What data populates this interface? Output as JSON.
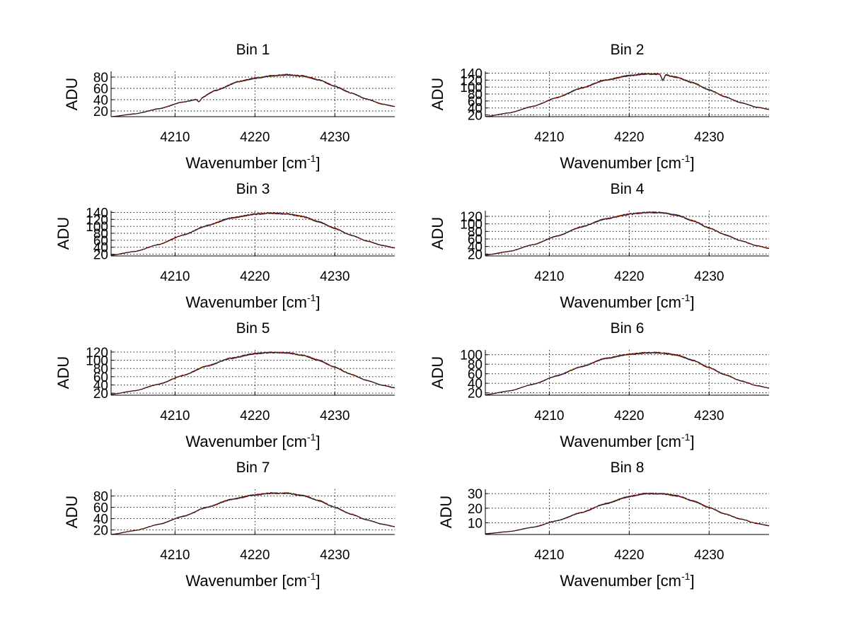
{
  "figure": {
    "background": "#ffffff",
    "series_colors": [
      "#ffd000",
      "#2a8a2a",
      "#1f3fd0",
      "#d00000",
      "#202020"
    ]
  },
  "chart_data": [
    {
      "type": "line",
      "title": "Bin 1",
      "xlabel": "Wavenumber [cm",
      "xlabel_sup": "-1",
      "xlabel_close": "]",
      "ylabel": "ADU",
      "xlim": [
        4202,
        4237.5
      ],
      "ylim": [
        10,
        90
      ],
      "xticks": [
        4210,
        4220,
        4230
      ],
      "xtick_labels": [
        "4210",
        "4220",
        "4230"
      ],
      "yticks": [
        20,
        40,
        60,
        80
      ],
      "ytick_labels": [
        "20",
        "40",
        "60",
        "80"
      ],
      "grid": true,
      "series": [
        {
          "x": [
            4202,
            4205,
            4208,
            4211,
            4213,
            4215,
            4218,
            4220,
            4222,
            4224,
            4226,
            4228,
            4230,
            4232,
            4234,
            4236,
            4237.5
          ],
          "y": [
            10,
            15,
            24,
            36,
            41,
            56,
            72,
            78,
            82,
            84,
            82,
            75,
            64,
            52,
            41,
            32,
            28
          ]
        }
      ],
      "dips": [
        {
          "x": 4213,
          "y": 36
        }
      ]
    },
    {
      "type": "line",
      "title": "Bin 2",
      "xlabel": "Wavenumber [cm",
      "xlabel_sup": "-1",
      "xlabel_close": "]",
      "ylabel": "ADU",
      "xlim": [
        4202,
        4237.5
      ],
      "ylim": [
        15,
        145
      ],
      "xticks": [
        4210,
        4220,
        4230
      ],
      "xtick_labels": [
        "4210",
        "4220",
        "4230"
      ],
      "yticks": [
        20,
        40,
        60,
        80,
        100,
        120,
        140
      ],
      "ytick_labels": [
        "20",
        "40",
        "60",
        "80",
        "100",
        "120",
        "140"
      ],
      "grid": true,
      "series": [
        {
          "x": [
            4202,
            4205,
            4208,
            4211,
            4214,
            4217,
            4220,
            4222,
            4224,
            4226,
            4228,
            4230,
            4232,
            4234,
            4236,
            4237.5
          ],
          "y": [
            15,
            26,
            45,
            70,
            97,
            120,
            133,
            138,
            137,
            128,
            112,
            92,
            72,
            55,
            42,
            36
          ]
        }
      ],
      "dips": [
        {
          "x": 4224.2,
          "y": 118
        }
      ]
    },
    {
      "type": "line",
      "title": "Bin 3",
      "xlabel": "Wavenumber [cm",
      "xlabel_sup": "-1",
      "xlabel_close": "]",
      "ylabel": "ADU",
      "xlim": [
        4202,
        4237.5
      ],
      "ylim": [
        15,
        145
      ],
      "xticks": [
        4210,
        4220,
        4230
      ],
      "xtick_labels": [
        "4210",
        "4220",
        "4230"
      ],
      "yticks": [
        20,
        40,
        60,
        80,
        100,
        120,
        140
      ],
      "ytick_labels": [
        "20",
        "40",
        "60",
        "80",
        "100",
        "120",
        "140"
      ],
      "grid": true,
      "series": [
        {
          "x": [
            4202,
            4205,
            4208,
            4211,
            4214,
            4217,
            4220,
            4222,
            4224,
            4226,
            4228,
            4230,
            4232,
            4234,
            4236,
            4237.5
          ],
          "y": [
            17,
            28,
            48,
            75,
            102,
            124,
            135,
            138,
            136,
            128,
            113,
            94,
            75,
            58,
            45,
            38
          ]
        }
      ],
      "dips": []
    },
    {
      "type": "line",
      "title": "Bin 4",
      "xlabel": "Wavenumber [cm",
      "xlabel_sup": "-1",
      "xlabel_close": "]",
      "ylabel": "ADU",
      "xlim": [
        4202,
        4237.5
      ],
      "ylim": [
        15,
        135
      ],
      "xticks": [
        4210,
        4220,
        4230
      ],
      "xtick_labels": [
        "4210",
        "4220",
        "4230"
      ],
      "yticks": [
        20,
        40,
        60,
        80,
        100,
        120
      ],
      "ytick_labels": [
        "20",
        "40",
        "60",
        "80",
        "100",
        "120"
      ],
      "grid": true,
      "series": [
        {
          "x": [
            4202,
            4205,
            4208,
            4211,
            4214,
            4217,
            4220,
            4222,
            4224,
            4226,
            4228,
            4230,
            4232,
            4234,
            4236,
            4237.5
          ],
          "y": [
            17,
            27,
            45,
            68,
            92,
            113,
            126,
            130,
            130,
            123,
            108,
            89,
            71,
            55,
            42,
            35
          ]
        }
      ],
      "dips": []
    },
    {
      "type": "line",
      "title": "Bin 5",
      "xlabel": "Wavenumber [cm",
      "xlabel_sup": "-1",
      "xlabel_close": "]",
      "ylabel": "ADU",
      "xlim": [
        4202,
        4237.5
      ],
      "ylim": [
        15,
        125
      ],
      "xticks": [
        4210,
        4220,
        4230
      ],
      "xtick_labels": [
        "4210",
        "4220",
        "4230"
      ],
      "yticks": [
        20,
        40,
        60,
        80,
        100,
        120
      ],
      "ytick_labels": [
        "20",
        "40",
        "60",
        "80",
        "100",
        "120"
      ],
      "grid": true,
      "series": [
        {
          "x": [
            4202,
            4205,
            4208,
            4211,
            4214,
            4217,
            4220,
            4222,
            4224,
            4226,
            4228,
            4230,
            4232,
            4234,
            4236,
            4237.5
          ],
          "y": [
            17,
            26,
            42,
            63,
            86,
            105,
            116,
            119,
            118,
            112,
            100,
            83,
            66,
            51,
            39,
            33
          ]
        }
      ],
      "dips": []
    },
    {
      "type": "line",
      "title": "Bin 6",
      "xlabel": "Wavenumber [cm",
      "xlabel_sup": "-1",
      "xlabel_close": "]",
      "ylabel": "ADU",
      "xlim": [
        4202,
        4237.5
      ],
      "ylim": [
        15,
        110
      ],
      "xticks": [
        4210,
        4220,
        4230
      ],
      "xtick_labels": [
        "4210",
        "4220",
        "4230"
      ],
      "yticks": [
        20,
        40,
        60,
        80,
        100
      ],
      "ytick_labels": [
        "20",
        "40",
        "60",
        "80",
        "100"
      ],
      "grid": true,
      "series": [
        {
          "x": [
            4202,
            4205,
            4208,
            4211,
            4214,
            4217,
            4220,
            4222,
            4224,
            4226,
            4228,
            4230,
            4232,
            4234,
            4236,
            4237.5
          ],
          "y": [
            16,
            24,
            38,
            56,
            75,
            92,
            101,
            104,
            104,
            99,
            88,
            73,
            58,
            45,
            35,
            30
          ]
        }
      ],
      "dips": []
    },
    {
      "type": "line",
      "title": "Bin 7",
      "xlabel": "Wavenumber [cm",
      "xlabel_sup": "-1",
      "xlabel_close": "]",
      "ylabel": "ADU",
      "xlim": [
        4202,
        4237.5
      ],
      "ylim": [
        12,
        92
      ],
      "xticks": [
        4210,
        4220,
        4230
      ],
      "xtick_labels": [
        "4210",
        "4220",
        "4230"
      ],
      "yticks": [
        20,
        40,
        60,
        80
      ],
      "ytick_labels": [
        "20",
        "40",
        "60",
        "80"
      ],
      "grid": true,
      "series": [
        {
          "x": [
            4202,
            4205,
            4208,
            4211,
            4214,
            4217,
            4220,
            4222,
            4224,
            4226,
            4228,
            4230,
            4232,
            4234,
            4236,
            4237.5
          ],
          "y": [
            12,
            19,
            30,
            44,
            60,
            74,
            82,
            85,
            85,
            81,
            72,
            60,
            48,
            38,
            30,
            26
          ]
        }
      ],
      "dips": []
    },
    {
      "type": "line",
      "title": "Bin 8",
      "xlabel": "Wavenumber [cm",
      "xlabel_sup": "-1",
      "xlabel_close": "]",
      "ylabel": "ADU",
      "xlim": [
        4202,
        4237.5
      ],
      "ylim": [
        2,
        33
      ],
      "xticks": [
        4210,
        4220,
        4230
      ],
      "xtick_labels": [
        "4210",
        "4220",
        "4230"
      ],
      "yticks": [
        10,
        20,
        30
      ],
      "ytick_labels": [
        "10",
        "20",
        "30"
      ],
      "grid": true,
      "series": [
        {
          "x": [
            4202,
            4205,
            4208,
            4211,
            4214,
            4217,
            4220,
            4222,
            4224,
            4226,
            4228,
            4230,
            4232,
            4234,
            4236,
            4237.5
          ],
          "y": [
            2.5,
            4,
            7,
            11.5,
            17,
            23,
            28,
            30,
            30,
            28.5,
            25,
            20.5,
            16,
            12.5,
            9.5,
            8
          ]
        }
      ],
      "dips": []
    }
  ]
}
